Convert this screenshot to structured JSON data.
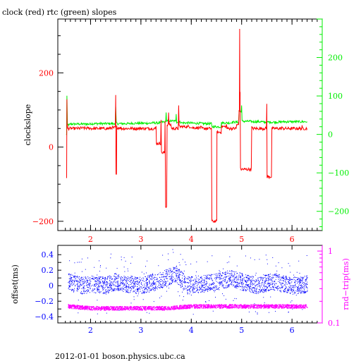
{
  "footer": "2012-01-01 boson.physics.ubc.ca",
  "colors": {
    "clock": "#ff0000",
    "rtc": "#00ee00",
    "offset": "#0000ff",
    "roundtrip": "#ff00ff",
    "frame": "#000000"
  },
  "chart_data": [
    {
      "type": "line",
      "title": "clock (red) rtc (green) slopes",
      "xlabel": "",
      "ylabel": "clockslope",
      "y2label": "",
      "xlim": [
        1.35,
        6.6
      ],
      "ylim": [
        -225,
        345
      ],
      "y2lim": [
        -250,
        300
      ],
      "x_ticks": [
        "2",
        "3",
        "4",
        "5",
        "6"
      ],
      "y_ticks": [
        "200",
        "0",
        "−200"
      ],
      "y2_ticks": [
        "200",
        "100",
        "0",
        "−100",
        "−200"
      ],
      "series": [
        {
          "axis": "left",
          "x": [
            1.52,
            1.53,
            1.54,
            1.55,
            1.6,
            1.8,
            2.0,
            2.2,
            2.4,
            2.5,
            2.51,
            2.52,
            2.6,
            2.8,
            3.0,
            3.2,
            3.3,
            3.35,
            3.4,
            3.45,
            3.48,
            3.5,
            3.52,
            3.55,
            3.6,
            3.7,
            3.75,
            3.8,
            4.0,
            4.2,
            4.4,
            4.5,
            4.51,
            4.52,
            4.6,
            4.7,
            4.8,
            4.9,
            4.95,
            4.96,
            4.97,
            5.0,
            5.2,
            5.4,
            5.5,
            5.51,
            5.6,
            5.8,
            6.0,
            6.2,
            6.3
          ],
          "y": [
            -85,
            130,
            60,
            50,
            50,
            52,
            51,
            50,
            52,
            140,
            -75,
            55,
            52,
            50,
            52,
            50,
            55,
            10,
            75,
            -15,
            70,
            -160,
            60,
            95,
            60,
            50,
            110,
            55,
            55,
            52,
            50,
            -200,
            45,
            40,
            55,
            60,
            50,
            60,
            100,
            315,
            150,
            -60,
            55,
            50,
            115,
            -80,
            50,
            55,
            50,
            55,
            50
          ]
        },
        {
          "axis": "right",
          "x": [
            1.52,
            1.53,
            1.55,
            1.6,
            1.8,
            2.0,
            2.2,
            2.4,
            2.5,
            2.52,
            2.6,
            2.8,
            3.0,
            3.2,
            3.4,
            3.5,
            3.6,
            3.7,
            3.8,
            4.0,
            4.2,
            4.4,
            4.52,
            4.6,
            4.8,
            4.95,
            5.0,
            5.2,
            5.4,
            5.6,
            5.8,
            6.0,
            6.2,
            6.3
          ],
          "y": [
            0,
            100,
            25,
            27,
            27,
            28,
            28,
            28,
            70,
            30,
            28,
            29,
            29,
            30,
            32,
            60,
            35,
            55,
            32,
            30,
            29,
            28,
            20,
            30,
            32,
            60,
            75,
            34,
            33,
            32,
            34,
            33,
            33,
            33
          ]
        }
      ]
    },
    {
      "type": "scatter",
      "title": "",
      "xlabel": "",
      "ylabel": "offset(ms)",
      "y2label": "rnd−trip(ms)",
      "xlim": [
        1.35,
        6.6
      ],
      "ylim": [
        -0.48,
        0.52
      ],
      "y2lim": [
        0.1,
        1.2
      ],
      "y2scale": "log",
      "x_ticks": [
        "2",
        "3",
        "4",
        "5",
        "6"
      ],
      "y_ticks": [
        "0.4",
        "0.2",
        "0",
        "−0.2",
        "−0.4"
      ],
      "y2_ticks": [
        "1",
        "0.1"
      ],
      "series": [
        {
          "axis": "left",
          "x": [
            1.55,
            1.8,
            2.0,
            2.3,
            2.5,
            2.7,
            3.0,
            3.3,
            3.5,
            3.7,
            3.9,
            4.2,
            4.5,
            4.8,
            5.0,
            5.3,
            5.6,
            6.0,
            6.3
          ],
          "y": [
            0.05,
            0.0,
            0.02,
            0.0,
            0.05,
            0.02,
            0.0,
            0.05,
            0.1,
            0.15,
            0.0,
            0.02,
            0.05,
            0.1,
            0.05,
            0.0,
            0.05,
            0.0,
            0.02
          ]
        },
        {
          "axis": "right",
          "x": [
            1.55,
            2.0,
            2.5,
            3.0,
            3.5,
            4.0,
            4.5,
            5.0,
            5.5,
            6.0,
            6.3
          ],
          "y": [
            0.17,
            0.16,
            0.16,
            0.16,
            0.16,
            0.17,
            0.17,
            0.17,
            0.17,
            0.17,
            0.17
          ]
        }
      ]
    }
  ]
}
